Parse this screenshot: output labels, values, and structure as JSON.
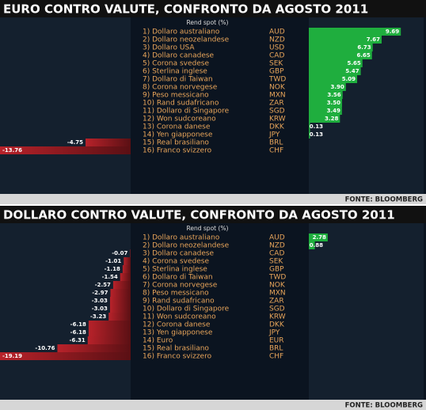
{
  "chart_data": [
    {
      "type": "bar",
      "orientation": "horizontal",
      "title": "EURO CONTRO VALUTE, CONFRONTO DA AGOSTO 2011",
      "header": "Rend spot (%)",
      "source": "FONTE: BLOOMBERG",
      "categories": [
        "1) Dollaro australiano",
        "2) Dollaro neozelandese",
        "3) Dollaro USA",
        "4) Dollaro canadese",
        "5) Corona svedese",
        "6) Sterlina inglese",
        "7) Dollaro di Taiwan",
        "8) Corona norvegese",
        "9) Peso messicano",
        "10) Rand sudafricano",
        "11) Dollaro di Singapore",
        "12) Won sudcoreano",
        "13) Corona danese",
        "14) Yen giapponese",
        "15) Real brasiliano",
        "16) Franco svizzero"
      ],
      "codes": [
        "AUD",
        "NZD",
        "USD",
        "CAD",
        "SEK",
        "GBP",
        "TWD",
        "NOK",
        "MXN",
        "ZAR",
        "SGD",
        "KRW",
        "DKK",
        "JPY",
        "BRL",
        "CHF"
      ],
      "values": [
        9.69,
        7.67,
        6.73,
        6.65,
        5.65,
        5.47,
        5.09,
        3.9,
        3.56,
        3.5,
        3.49,
        3.28,
        0.13,
        0.13,
        -4.75,
        -13.76
      ],
      "value_labels": [
        "9.69",
        "7.67",
        "6.73",
        "6.65",
        "5.65",
        "5.47",
        "5.09",
        "3.90",
        "3.56",
        "3.50",
        "3.49",
        "3.28",
        "0.13",
        "0.13",
        "-4.75",
        "-13.76"
      ],
      "positive_color": "#1fae3e",
      "negative_color": "#b8222a"
    },
    {
      "type": "bar",
      "orientation": "horizontal",
      "title": "DOLLARO CONTRO VALUTE, CONFRONTO DA AGOSTO 2011",
      "header": "Rend spot (%)",
      "source": "FONTE: BLOOMBERG",
      "categories": [
        "1) Dollaro australiano",
        "2) Dollaro neozelandese",
        "3) Dollaro canadese",
        "4) Corona svedese",
        "5) Sterlina inglese",
        "6) Dollaro di Taiwan",
        "7) Corona norvegese",
        "8) Peso messicano",
        "9) Rand sudafricano",
        "10) Dollaro di Singapore",
        "11) Won sudcoreano",
        "12) Corona danese",
        "13) Yen giapponese",
        "14) Euro",
        "15) Real brasiliano",
        "16) Franco svizzero"
      ],
      "codes": [
        "AUD",
        "NZD",
        "CAD",
        "SEK",
        "GBP",
        "TWD",
        "NOK",
        "MXN",
        "ZAR",
        "SGD",
        "KRW",
        "DKK",
        "JPY",
        "EUR",
        "BRL",
        "CHF"
      ],
      "values": [
        2.78,
        0.88,
        -0.07,
        -1.01,
        -1.18,
        -1.54,
        -2.57,
        -2.97,
        -3.03,
        -3.03,
        -3.23,
        -6.18,
        -6.18,
        -6.31,
        -10.76,
        -19.19
      ],
      "value_labels": [
        "2.78",
        "0.88",
        "-0.07",
        "-1.01",
        "-1.18",
        "-1.54",
        "-2.57",
        "-2.97",
        "-3.03",
        "-3.03",
        "-3.23",
        "-6.18",
        "-6.18",
        "-6.31",
        "-10.76",
        "-19.19"
      ],
      "positive_color": "#1fae3e",
      "negative_color": "#b8222a"
    }
  ]
}
